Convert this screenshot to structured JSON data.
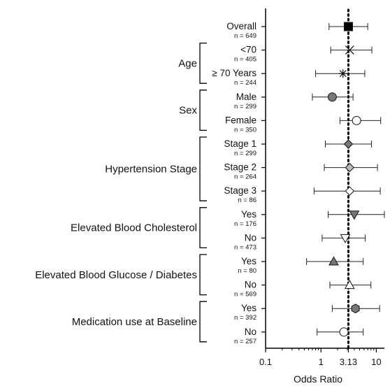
{
  "chart_data": {
    "type": "forest",
    "xlabel": "Odds Ratio",
    "xscale": "log",
    "xlim": [
      0.1,
      14
    ],
    "xticks": [
      {
        "value": 0.1,
        "label": "0.1"
      },
      {
        "value": 1,
        "label": "1"
      },
      {
        "value": 3.13,
        "label": "3.13"
      },
      {
        "value": 10,
        "label": "10"
      }
    ],
    "reference_line": 3.13,
    "groups": [
      {
        "label": "Age",
        "rows": [
          1,
          2
        ]
      },
      {
        "label": "Sex",
        "rows": [
          3,
          4
        ]
      },
      {
        "label": "Hypertension Stage",
        "rows": [
          5,
          6,
          7
        ]
      },
      {
        "label": "Elevated Blood Cholesterol",
        "rows": [
          8,
          9
        ]
      },
      {
        "label": "Elevated Blood Glucose / Diabetes",
        "rows": [
          10,
          11
        ]
      },
      {
        "label": "Medication use at Baseline",
        "rows": [
          12,
          13
        ]
      }
    ],
    "rows": [
      {
        "label": "Overall",
        "n": "n = 649",
        "or": 3.13,
        "lo": 1.4,
        "hi": 7.0,
        "marker": "square",
        "fill": "#000000"
      },
      {
        "label": "<70",
        "n": "n = 405",
        "or": 3.3,
        "lo": 1.5,
        "hi": 8.3,
        "marker": "x",
        "fill": "none"
      },
      {
        "label": "≥ 70 Years",
        "n": "n = 244",
        "or": 2.5,
        "lo": 0.8,
        "hi": 6.2,
        "marker": "star",
        "fill": "none"
      },
      {
        "label": "Male",
        "n": "n = 299",
        "or": 1.6,
        "lo": 0.7,
        "hi": 3.8,
        "marker": "circle",
        "fill": "#777777"
      },
      {
        "label": "Female",
        "n": "n = 350",
        "or": 4.4,
        "lo": 2.2,
        "hi": 12.0,
        "marker": "circle",
        "fill": "#ffffff"
      },
      {
        "label": "Stage 1",
        "n": "n = 299",
        "or": 3.13,
        "lo": 1.2,
        "hi": 8.2,
        "marker": "diamond",
        "fill": "#777777"
      },
      {
        "label": "Stage 2",
        "n": "n = 264",
        "or": 3.3,
        "lo": 1.15,
        "hi": 10.5,
        "marker": "diamond",
        "fill": "#bbbbbb"
      },
      {
        "label": "Stage 3",
        "n": "n = 86",
        "or": 3.3,
        "lo": 0.75,
        "hi": 11.8,
        "marker": "diamond",
        "fill": "#ffffff"
      },
      {
        "label": "Yes",
        "n": "n = 176",
        "or": 4.0,
        "lo": 1.35,
        "hi": 14.0,
        "marker": "tri-down",
        "fill": "#777777"
      },
      {
        "label": "No",
        "n": "n = 473",
        "or": 2.75,
        "lo": 1.05,
        "hi": 6.3,
        "marker": "tri-down",
        "fill": "#ffffff"
      },
      {
        "label": "Yes",
        "n": "n = 80",
        "or": 1.7,
        "lo": 0.55,
        "hi": 5.8,
        "marker": "tri-up",
        "fill": "#777777"
      },
      {
        "label": "No",
        "n": "n = 569",
        "or": 3.3,
        "lo": 1.45,
        "hi": 8.0,
        "marker": "tri-up",
        "fill": "#ffffff"
      },
      {
        "label": "Yes",
        "n": "n = 392",
        "or": 4.2,
        "lo": 1.6,
        "hi": 11.5,
        "marker": "hexagon",
        "fill": "#777777"
      },
      {
        "label": "No",
        "n": "n = 257",
        "or": 2.6,
        "lo": 0.85,
        "hi": 5.8,
        "marker": "circle",
        "fill": "#ffffff"
      }
    ]
  }
}
